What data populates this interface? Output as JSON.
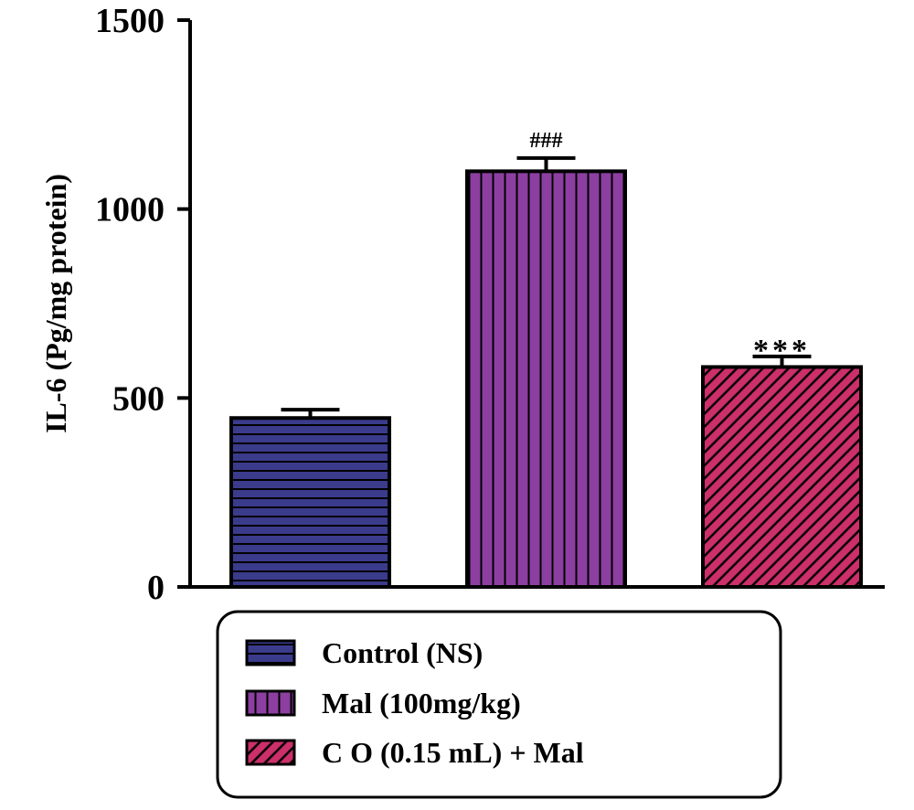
{
  "chart_data": {
    "type": "bar",
    "title": "",
    "xlabel": "",
    "ylabel": "IL-6 (Pg/mg protein)",
    "ylim": [
      0,
      1500
    ],
    "yticks": [
      "0",
      "500",
      "1000",
      "1500"
    ],
    "ytick_values": [
      0,
      500,
      1000,
      1500
    ],
    "grid": false,
    "legend_position": "bottom",
    "categories": [
      "Control (NS)",
      "Mal (100mg/kg)",
      "C O (0.15 mL) + Mal"
    ],
    "values": [
      447,
      1100,
      582
    ],
    "errors": [
      22,
      35,
      28
    ],
    "annotations": [
      "",
      "###",
      "***"
    ],
    "colors": [
      "#3b3b8c",
      "#8c3fa0",
      "#cc2f6a"
    ],
    "patterns": [
      "horizontal-lines",
      "vertical-lines",
      "diagonal-lines"
    ]
  }
}
